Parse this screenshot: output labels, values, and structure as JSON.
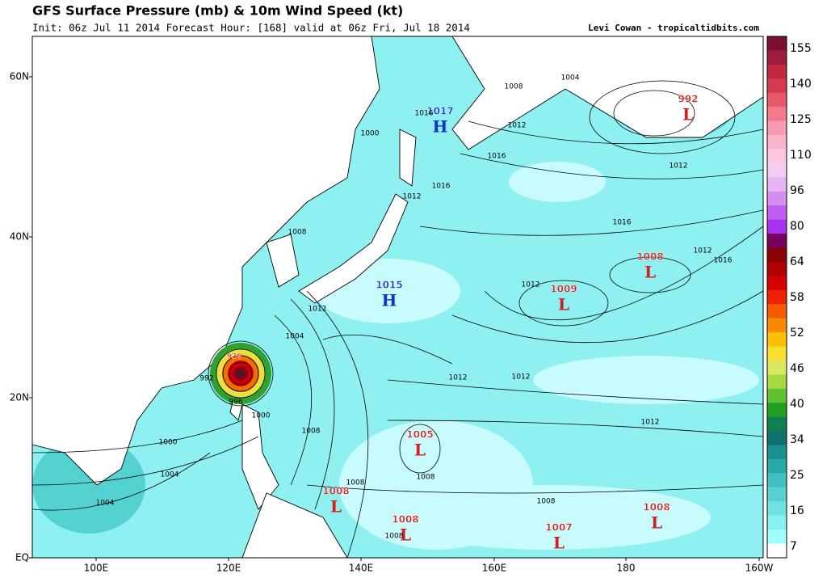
{
  "header": {
    "title": "GFS Surface Pressure (mb) & 10m Wind Speed (kt)",
    "subtitle": "Init: 06z Jul 11 2014 Forecast Hour: [168] valid at 06z Fri, Jul 18 2014",
    "credit": "Levi Cowan - tropicaltidbits.com"
  },
  "map": {
    "lat_labels": [
      "60N",
      "40N",
      "20N",
      "EQ"
    ],
    "lon_labels": [
      "100E",
      "120E",
      "140E",
      "160E",
      "180",
      "160W"
    ],
    "centers": [
      {
        "type": "H",
        "pressure": "1017"
      },
      {
        "type": "H",
        "pressure": "1015"
      },
      {
        "type": "L",
        "pressure": "992"
      },
      {
        "type": "L",
        "pressure": "1008"
      },
      {
        "type": "L",
        "pressure": "1009"
      },
      {
        "type": "L",
        "pressure": "1005"
      },
      {
        "type": "L",
        "pressure": "1008"
      },
      {
        "type": "L",
        "pressure": "1008"
      },
      {
        "type": "L",
        "pressure": "1007"
      },
      {
        "type": "L",
        "pressure": "1008"
      },
      {
        "type": "L",
        "pressure": "938"
      }
    ],
    "isobar_labels": [
      "1000",
      "1004",
      "1008",
      "1012",
      "1016",
      "1016",
      "1012",
      "1016",
      "1012",
      "1016",
      "1012",
      "1016",
      "1012",
      "1008",
      "1012",
      "1004",
      "1012",
      "1012",
      "1012",
      "1008",
      "1000",
      "1004",
      "1000",
      "1004",
      "1008",
      "1008",
      "1008",
      "992",
      "996",
      "1008"
    ]
  },
  "colorbar": {
    "labels": [
      155,
      140,
      125,
      110,
      96,
      80,
      64,
      58,
      52,
      46,
      40,
      34,
      25,
      16,
      7
    ]
  }
}
